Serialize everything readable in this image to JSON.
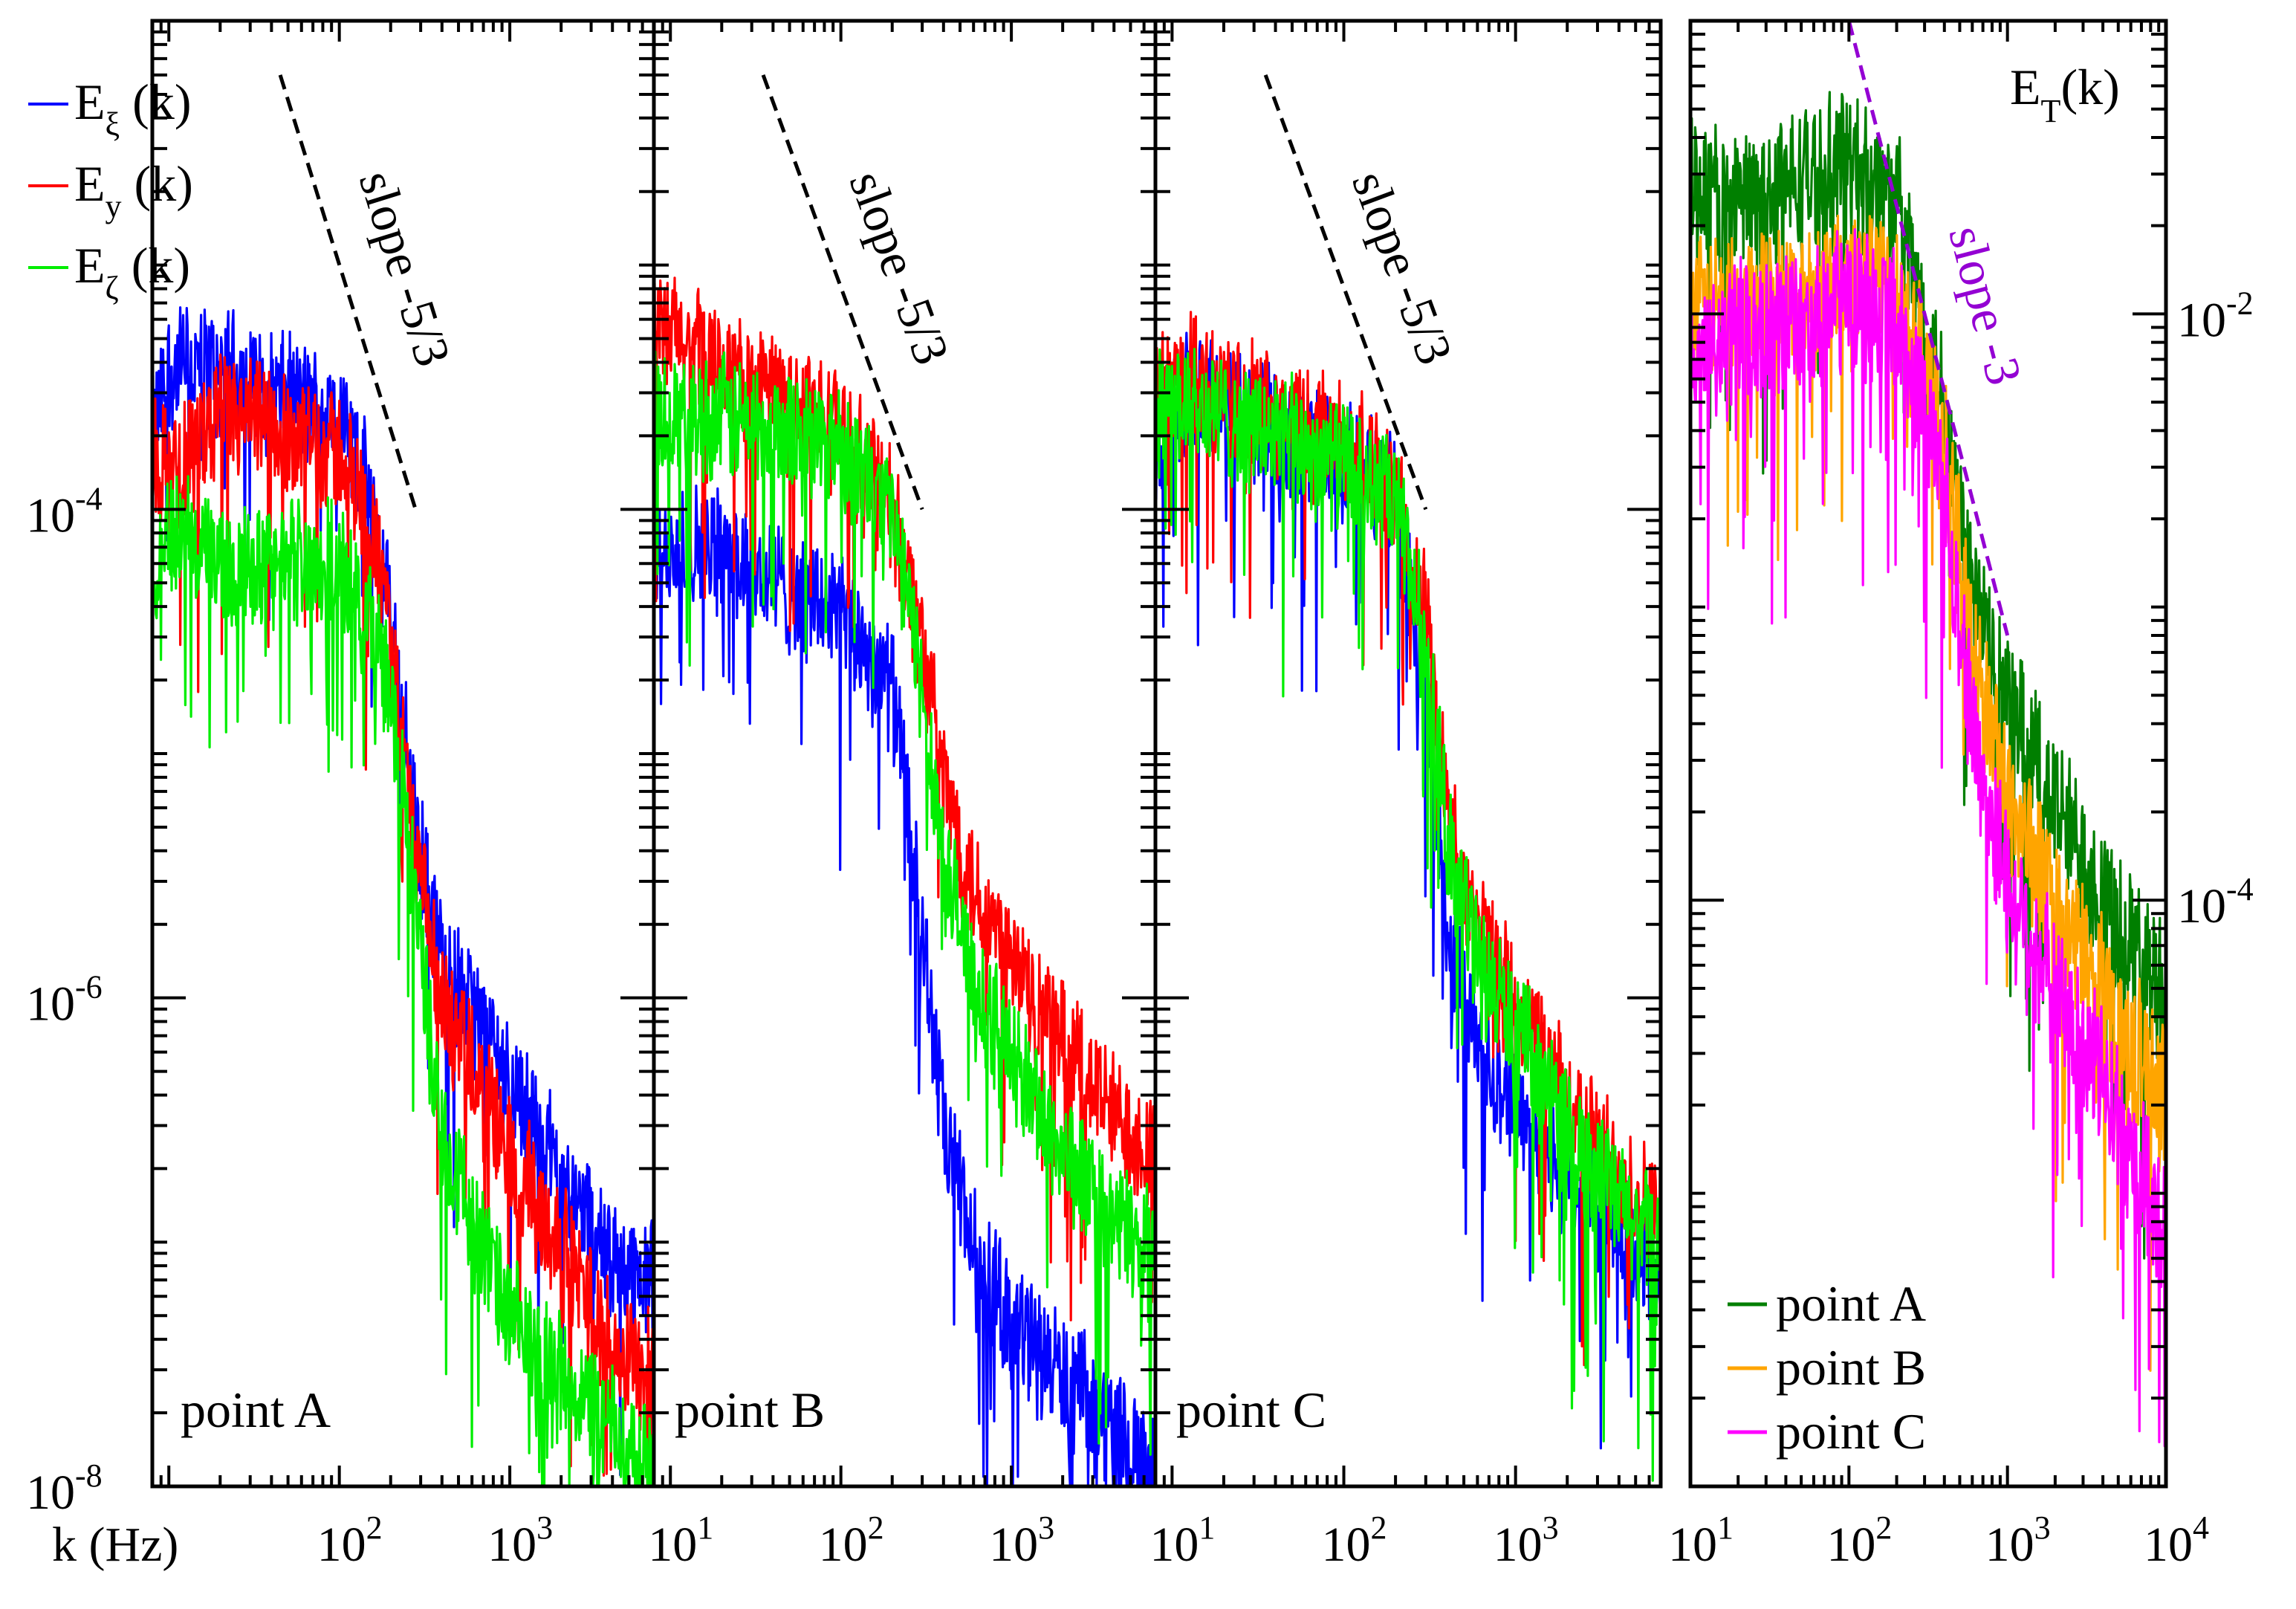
{
  "chart_data": {
    "type": "line",
    "xscale": "log",
    "yscale": "log",
    "xlabel": "k (Hz)",
    "panels": [
      {
        "id": "A",
        "label": "point A",
        "xlim": [
          8,
          7000
        ],
        "ylim": [
          1e-08,
          0.01
        ],
        "x_ticks": [
          {
            "base": "10",
            "exp": "2",
            "value": 100
          },
          {
            "base": "10",
            "exp": "3",
            "value": 1000
          }
        ],
        "y_ticks": [
          {
            "base": "10",
            "exp": "-4",
            "value": 0.0001
          },
          {
            "base": "10",
            "exp": "-6",
            "value": 1e-06
          },
          {
            "base": "10",
            "exp": "-8",
            "value": 1e-08
          }
        ],
        "slope_annotation": {
          "text": "slope -5/3",
          "x": [
            45,
            280
          ],
          "y": [
            0.006,
            0.0001
          ]
        },
        "series": [
          {
            "name": "E_ξ",
            "color": "#0000ff",
            "points": [
              [
                8,
                0.0002
              ],
              [
                10,
                0.0004
              ],
              [
                20,
                0.0004
              ],
              [
                50,
                0.0003
              ],
              [
                100,
                0.00025
              ],
              [
                150,
                0.00012
              ],
              [
                200,
                4e-05
              ],
              [
                280,
                5e-06
              ],
              [
                400,
                1.5e-06
              ],
              [
                700,
                8e-07
              ],
              [
                1000,
                5e-07
              ],
              [
                2000,
                2e-07
              ],
              [
                4000,
                9e-08
              ],
              [
                7000,
                7e-08
              ]
            ]
          },
          {
            "name": "E_y",
            "color": "#ff0000",
            "points": [
              [
                8,
                0.00017
              ],
              [
                10,
                0.00015
              ],
              [
                20,
                0.00025
              ],
              [
                50,
                0.00022
              ],
              [
                100,
                0.00018
              ],
              [
                150,
                0.0001
              ],
              [
                200,
                3e-05
              ],
              [
                280,
                4e-06
              ],
              [
                400,
                1e-06
              ],
              [
                700,
                4e-07
              ],
              [
                1000,
                2.5e-07
              ],
              [
                2000,
                1e-07
              ],
              [
                4000,
                4e-08
              ],
              [
                7000,
                3e-08
              ]
            ]
          },
          {
            "name": "E_ζ",
            "color": "#00ee00",
            "points": [
              [
                8,
                5e-05
              ],
              [
                10,
                9e-05
              ],
              [
                20,
                6e-05
              ],
              [
                50,
                7e-05
              ],
              [
                100,
                6e-05
              ],
              [
                150,
                4e-05
              ],
              [
                200,
                1.8e-05
              ],
              [
                280,
                2.5e-06
              ],
              [
                400,
                3e-07
              ],
              [
                700,
                1e-07
              ],
              [
                1000,
                5e-08
              ],
              [
                2000,
                3e-08
              ],
              [
                4000,
                1.8e-08
              ],
              [
                7000,
                1.2e-08
              ]
            ]
          }
        ]
      },
      {
        "id": "B",
        "label": "point B",
        "xlim": [
          8,
          7000
        ],
        "ylim": [
          1e-08,
          0.01
        ],
        "x_ticks": [
          {
            "base": "10",
            "exp": "1",
            "value": 10
          },
          {
            "base": "10",
            "exp": "2",
            "value": 100
          },
          {
            "base": "10",
            "exp": "3",
            "value": 1000
          }
        ],
        "slope_annotation": {
          "text": "slope -5/3",
          "x": [
            35,
            300
          ],
          "y": [
            0.006,
            0.0001
          ]
        },
        "series": [
          {
            "name": "E_ξ",
            "color": "#0000ff",
            "points": [
              [
                8,
                5e-05
              ],
              [
                10,
                8e-05
              ],
              [
                20,
                7e-05
              ],
              [
                50,
                5e-05
              ],
              [
                100,
                4e-05
              ],
              [
                200,
                2e-05
              ],
              [
                300,
                2e-06
              ],
              [
                400,
                3e-07
              ],
              [
                600,
                1e-07
              ],
              [
                1000,
                5e-08
              ],
              [
                2000,
                3e-08
              ],
              [
                4000,
                1.8e-08
              ],
              [
                7000,
                1.2e-08
              ]
            ]
          },
          {
            "name": "E_y",
            "color": "#ff0000",
            "points": [
              [
                8,
                0.0005
              ],
              [
                10,
                0.00055
              ],
              [
                20,
                0.0004
              ],
              [
                50,
                0.0003
              ],
              [
                100,
                0.00022
              ],
              [
                200,
                0.00011
              ],
              [
                300,
                3e-05
              ],
              [
                400,
                8e-06
              ],
              [
                600,
                3e-06
              ],
              [
                1000,
                1.5e-06
              ],
              [
                2000,
                7e-07
              ],
              [
                4000,
                3.5e-07
              ],
              [
                7000,
                2.5e-07
              ]
            ]
          },
          {
            "name": "E_ζ",
            "color": "#00ee00",
            "points": [
              [
                8,
                0.0003
              ],
              [
                10,
                0.00025
              ],
              [
                20,
                0.00025
              ],
              [
                50,
                0.00022
              ],
              [
                100,
                0.0002
              ],
              [
                200,
                0.0001
              ],
              [
                300,
                2e-05
              ],
              [
                400,
                4e-06
              ],
              [
                600,
                1.2e-06
              ],
              [
                1000,
                6e-07
              ],
              [
                2000,
                2.5e-07
              ],
              [
                4000,
                1.3e-07
              ],
              [
                7000,
                9e-08
              ]
            ]
          }
        ]
      },
      {
        "id": "C",
        "label": "point C",
        "xlim": [
          8,
          7000
        ],
        "ylim": [
          1e-08,
          0.01
        ],
        "x_ticks": [
          {
            "base": "10",
            "exp": "1",
            "value": 10
          },
          {
            "base": "10",
            "exp": "2",
            "value": 100
          },
          {
            "base": "10",
            "exp": "3",
            "value": 1000
          }
        ],
        "slope_annotation": {
          "text": "slope -5/3",
          "x": [
            35,
            300
          ],
          "y": [
            0.006,
            0.0001
          ]
        },
        "series": [
          {
            "name": "E_ξ",
            "color": "#0000ff",
            "points": [
              [
                8,
                0.0002
              ],
              [
                10,
                0.0003
              ],
              [
                20,
                0.0003
              ],
              [
                50,
                0.0002
              ],
              [
                100,
                0.00018
              ],
              [
                200,
                0.00012
              ],
              [
                300,
                2e-05
              ],
              [
                400,
                2e-06
              ],
              [
                600,
                7e-07
              ],
              [
                1000,
                4e-07
              ],
              [
                2000,
                2e-07
              ],
              [
                4000,
                1.2e-07
              ],
              [
                7000,
                7e-08
              ]
            ]
          },
          {
            "name": "E_y",
            "color": "#ff0000",
            "points": [
              [
                8,
                0.0003
              ],
              [
                10,
                0.0004
              ],
              [
                20,
                0.0003
              ],
              [
                50,
                0.00025
              ],
              [
                100,
                0.0002
              ],
              [
                200,
                0.00012
              ],
              [
                300,
                4e-05
              ],
              [
                400,
                6e-06
              ],
              [
                600,
                2e-06
              ],
              [
                1000,
                1e-06
              ],
              [
                2000,
                4e-07
              ],
              [
                4000,
                2e-07
              ],
              [
                7000,
                1.3e-07
              ]
            ]
          },
          {
            "name": "E_ζ",
            "color": "#00ee00",
            "points": [
              [
                8,
                0.00025
              ],
              [
                10,
                0.0003
              ],
              [
                20,
                0.00025
              ],
              [
                50,
                0.0002
              ],
              [
                100,
                0.00016
              ],
              [
                200,
                0.00011
              ],
              [
                300,
                3e-05
              ],
              [
                400,
                5e-06
              ],
              [
                600,
                1.5e-06
              ],
              [
                1000,
                8e-07
              ],
              [
                2000,
                3e-07
              ],
              [
                4000,
                1.5e-07
              ],
              [
                7000,
                1e-07
              ]
            ]
          }
        ]
      },
      {
        "id": "T",
        "label": "E_T(k)",
        "xlim": [
          10,
          10000
        ],
        "ylim": [
          1e-06,
          0.1
        ],
        "x_ticks": [
          {
            "base": "10",
            "exp": "1",
            "value": 10
          },
          {
            "base": "10",
            "exp": "2",
            "value": 100
          },
          {
            "base": "10",
            "exp": "3",
            "value": 1000
          },
          {
            "base": "10",
            "exp": "4",
            "value": 10000
          }
        ],
        "y_ticks": [
          {
            "base": "10",
            "exp": "-2",
            "value": 0.01
          },
          {
            "base": "10",
            "exp": "-4",
            "value": 0.0001
          }
        ],
        "slope_annotation": {
          "text": "slope -3",
          "x": [
            100,
            1000
          ],
          "y": [
            0.1,
            0.0008
          ]
        },
        "series": [
          {
            "name": "point A",
            "color": "#007f00",
            "points": [
              [
                10,
                0.03
              ],
              [
                20,
                0.025
              ],
              [
                50,
                0.03
              ],
              [
                100,
                0.035
              ],
              [
                200,
                0.025
              ],
              [
                400,
                0.005
              ],
              [
                600,
                0.0012
              ],
              [
                1000,
                0.0005
              ],
              [
                2000,
                0.00022
              ],
              [
                5000,
                9e-05
              ],
              [
                10000,
                5e-05
              ]
            ]
          },
          {
            "name": "point B",
            "color": "#ffa500",
            "points": [
              [
                10,
                0.01
              ],
              [
                20,
                0.012
              ],
              [
                50,
                0.012
              ],
              [
                100,
                0.014
              ],
              [
                200,
                0.013
              ],
              [
                400,
                0.004
              ],
              [
                600,
                0.0007
              ],
              [
                1000,
                0.00025
              ],
              [
                2000,
                0.0001
              ],
              [
                5000,
                4e-05
              ],
              [
                10000,
                2.2e-05
              ]
            ]
          },
          {
            "name": "point C",
            "color": "#ff00ff",
            "points": [
              [
                10,
                0.007
              ],
              [
                20,
                0.009
              ],
              [
                50,
                0.01
              ],
              [
                100,
                0.012
              ],
              [
                200,
                0.01
              ],
              [
                400,
                0.003
              ],
              [
                600,
                0.0004
              ],
              [
                1000,
                0.00012
              ],
              [
                2000,
                5e-05
              ],
              [
                5000,
                2e-05
              ],
              [
                10000,
                7e-06
              ]
            ]
          }
        ]
      }
    ],
    "legend_left": [
      {
        "base": "E",
        "sub": "ξ",
        "tail": " (k)",
        "color": "#0000ff"
      },
      {
        "base": "E",
        "sub": "y",
        "tail": " (k)",
        "color": "#ff0000"
      },
      {
        "base": "E",
        "sub": "ζ",
        "tail": " (k)",
        "color": "#00ee00"
      }
    ],
    "legend_right": [
      {
        "text": "point A",
        "color": "#007f00"
      },
      {
        "text": "point B",
        "color": "#ffa500"
      },
      {
        "text": "point C",
        "color": "#ff00ff"
      }
    ],
    "right_title": {
      "base": "E",
      "sub": "T",
      "tail": "(k)"
    },
    "slope_color_left": "#000000",
    "slope_color_right": "#9400d3"
  }
}
